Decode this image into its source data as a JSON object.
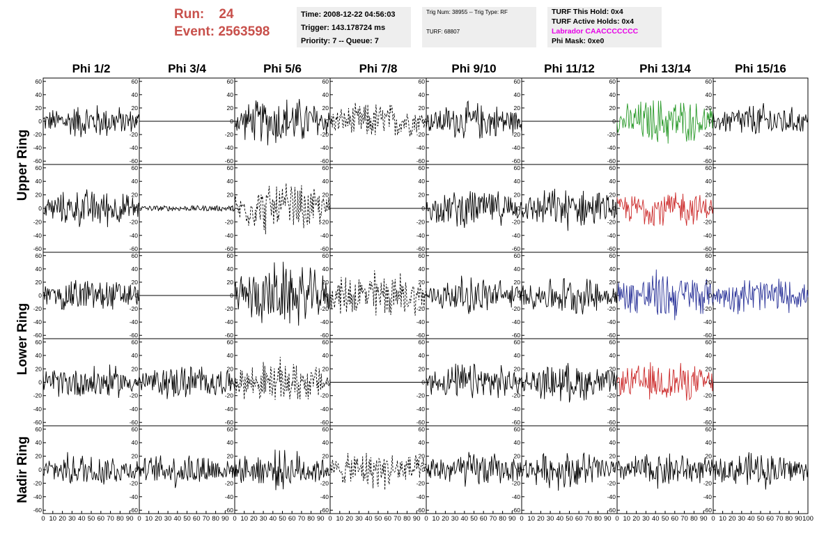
{
  "header": {
    "run_label": "Run:",
    "run_value": "24",
    "event_label": "Event:",
    "event_value": "2563598"
  },
  "info_box_1": {
    "time": "Time: 2008-12-22 04:56:03",
    "trigger": "Trigger: 143.178724 ms",
    "priority": "Priority: 7 -- Queue: 7"
  },
  "info_box_2": {
    "trig": "Trig Num: 38955 -- Trig Type: RF",
    "turf": "TURF: 68807"
  },
  "info_box_3": {
    "this_hold": "TURF This Hold: 0x4",
    "active_holds": "TURF Active Holds: 0x4",
    "labrador": "Labrador CAACCCCCCC",
    "phi_mask": "Phi Mask: 0xe0"
  },
  "colors": {
    "header_red": "#c8504b",
    "labrador_magenta": "#e600e6",
    "trace_black": "#000000",
    "trace_green": "#2a9a2a",
    "trace_red": "#cc2a2a",
    "trace_blue": "#2a3399",
    "info_bg": "#eeeeee"
  },
  "chart_data": {
    "type": "line",
    "columns": [
      "Phi 1/2",
      "Phi 3/4",
      "Phi 5/6",
      "Phi 7/8",
      "Phi 9/10",
      "Phi 11/12",
      "Phi 13/14",
      "Phi 15/16"
    ],
    "ring_labels": [
      "Upper Ring",
      "Lower Ring",
      "Nadir Ring"
    ],
    "ylim": [
      -65,
      65
    ],
    "y_ticks": [
      -60,
      -40,
      -20,
      0,
      20,
      40,
      60
    ],
    "xlim": [
      0,
      100
    ],
    "x_ticks": [
      0,
      10,
      20,
      30,
      40,
      50,
      60,
      70,
      80,
      90,
      100
    ],
    "x_tick_labels_last_column": [
      0,
      10,
      20,
      30,
      40,
      50,
      60,
      70,
      80,
      90,
      100
    ],
    "cells": [
      [
        "black",
        "flat",
        "black",
        "dashed",
        "black",
        "flat",
        "green",
        "black"
      ],
      [
        "black",
        "small",
        "dashed",
        "flat",
        "black",
        "black",
        "red",
        "flat"
      ],
      [
        "black",
        "flat",
        "black",
        "dashed",
        "black",
        "black",
        "blue",
        "blue"
      ],
      [
        "black",
        "black",
        "dashed",
        "flat",
        "black",
        "black",
        "red",
        "flat"
      ],
      [
        "black",
        "black",
        "black",
        "dashed",
        "black",
        "black",
        "black",
        "black"
      ]
    ],
    "cell_amplitudes": [
      [
        28,
        0,
        40,
        30,
        30,
        0,
        38,
        28
      ],
      [
        30,
        4,
        40,
        0,
        30,
        32,
        30,
        0
      ],
      [
        28,
        0,
        50,
        40,
        30,
        30,
        40,
        30
      ],
      [
        28,
        28,
        35,
        0,
        30,
        30,
        32,
        0
      ],
      [
        28,
        28,
        30,
        30,
        28,
        30,
        28,
        28
      ]
    ]
  }
}
